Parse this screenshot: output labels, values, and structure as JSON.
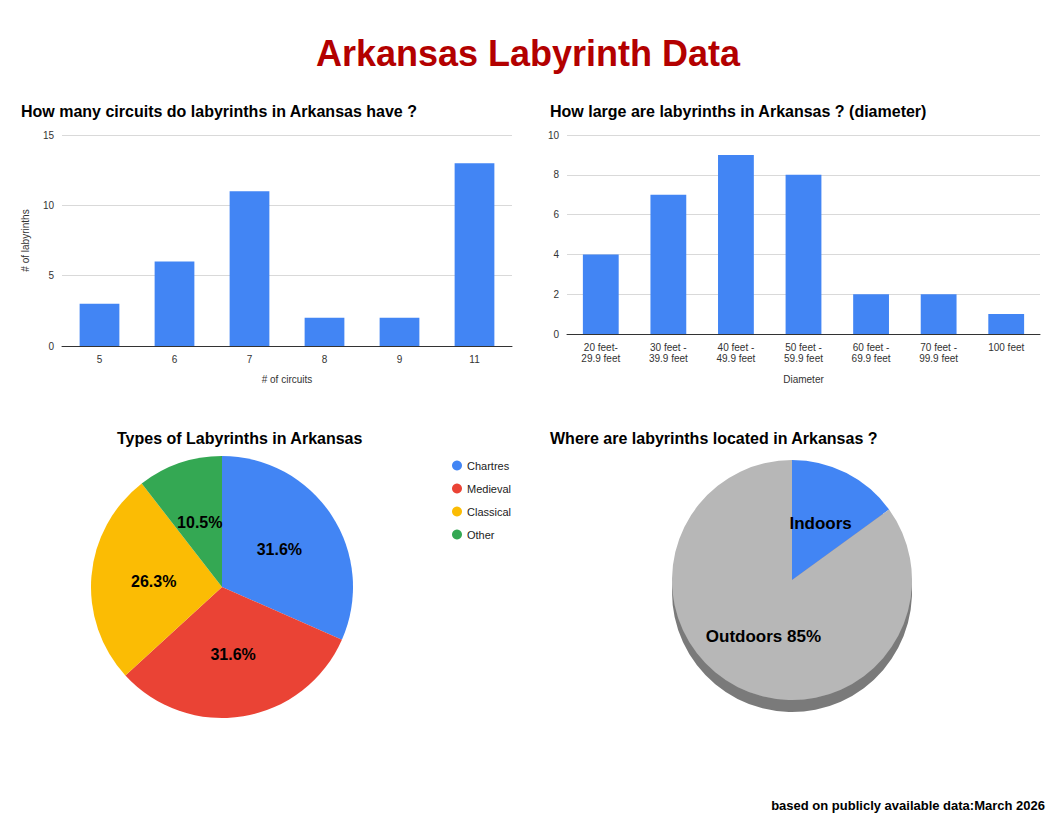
{
  "title": "Arkansas Labyrinth Data",
  "note": "based on publicly available data:March 2026",
  "chart_data": [
    {
      "type": "bar",
      "title": "How many circuits do labyrinths in Arkansas have ?",
      "x_label": "# of circuits",
      "y_label": "# of labyrinths",
      "categories": [
        "5",
        "6",
        "7",
        "8",
        "9",
        "11"
      ],
      "values": [
        3,
        6,
        11,
        2,
        2,
        13
      ],
      "color": "#4285f4",
      "ylim": [
        0,
        15
      ],
      "yticks": [
        0,
        5,
        10,
        15
      ],
      "grid": true
    },
    {
      "type": "bar",
      "title": "How large are labyrinths in Arkansas ? (diameter)",
      "x_label": "Diameter",
      "categories": [
        "20 feet-\n29.9 feet",
        "30 feet -\n39.9 feet",
        "40 feet -\n49.9 feet",
        "50 feet -\n59.9 feet",
        "60 feet -\n69.9 feet",
        "70 feet -\n99.9 feet",
        "100 feet"
      ],
      "values": [
        4,
        7,
        9,
        8,
        2,
        2,
        1
      ],
      "color": "#4285f4",
      "ylim": [
        0,
        10
      ],
      "yticks": [
        0,
        2,
        4,
        6,
        8,
        10
      ],
      "grid": true
    },
    {
      "type": "pie",
      "title": "Types of Labyrinths in Arkansas",
      "categories": [
        "Chartres",
        "Medieval",
        "Classical",
        "Other"
      ],
      "values": [
        31.6,
        31.6,
        26.3,
        10.5
      ],
      "value_labels": [
        "31.6%",
        "31.6%",
        "26.3%",
        "10.5%"
      ],
      "colors": [
        "#4285f4",
        "#ea4335",
        "#fbbc04",
        "#34a853"
      ],
      "legend": "right",
      "data_labels": true
    },
    {
      "type": "pie",
      "title": "Where are labyrinths located in Arkansas ?",
      "categories": [
        "Indoors",
        "Outdoors"
      ],
      "values": [
        15,
        85
      ],
      "value_labels": [
        null,
        "85%"
      ],
      "colors": [
        "#4285f4",
        "#b7b7b7"
      ],
      "data_labels": true
    }
  ]
}
